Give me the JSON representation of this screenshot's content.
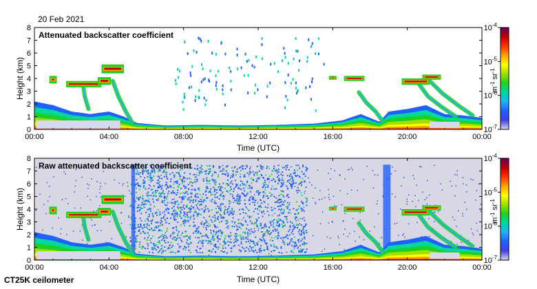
{
  "header": {
    "date": "20 Feb 2021"
  },
  "footer": {
    "instrument": "CT25K ceilometer"
  },
  "chart_data": [
    {
      "type": "heatmap",
      "title": "Attenuated backscatter coefficient",
      "xlabel": "Time (UTC)",
      "ylabel": "Height (km)",
      "x_ticks": [
        "00:00",
        "04:00",
        "08:00",
        "12:00",
        "16:00",
        "20:00",
        "00:00"
      ],
      "y_ticks": [
        "0",
        "1",
        "2",
        "3",
        "4",
        "5",
        "6",
        "7",
        "8"
      ],
      "xlim_hours": [
        0,
        24
      ],
      "ylim_km": [
        0,
        8
      ],
      "colorbar": {
        "scale": "log",
        "ticks": [
          {
            "base": "10",
            "exp": "-7",
            "value": 1e-07
          },
          {
            "base": "10",
            "exp": "-6",
            "value": 1e-06
          },
          {
            "base": "10",
            "exp": "-5",
            "value": 1e-05
          },
          {
            "base": "10",
            "exp": "-4",
            "value": 0.0001
          }
        ],
        "unit": {
          "m": "m",
          "m_exp": "-1",
          "sr": "sr",
          "sr_exp": "-1"
        }
      }
    },
    {
      "type": "heatmap",
      "title": "Raw attenuated backscatter coefficient",
      "xlabel": "Time (UTC)",
      "ylabel": "Height (km)",
      "x_ticks": [
        "00:00",
        "04:00",
        "08:00",
        "12:00",
        "16:00",
        "20:00",
        "00:00"
      ],
      "y_ticks": [
        "0",
        "1",
        "2",
        "3",
        "4",
        "5",
        "6",
        "7",
        "8"
      ],
      "xlim_hours": [
        0,
        24
      ],
      "ylim_km": [
        0,
        8
      ],
      "colorbar": {
        "scale": "log",
        "ticks": [
          {
            "base": "10",
            "exp": "-7",
            "value": 1e-07
          },
          {
            "base": "10",
            "exp": "-6",
            "value": 1e-06
          },
          {
            "base": "10",
            "exp": "-5",
            "value": 1e-05
          },
          {
            "base": "10",
            "exp": "-4",
            "value": 0.0001
          }
        ],
        "unit": {
          "m": "m",
          "m_exp": "-1",
          "sr": "sr",
          "sr_exp": "-1"
        }
      }
    }
  ],
  "colormap": [
    "#d8d8ee",
    "#4040e0",
    "#2060ff",
    "#20b0ff",
    "#00d8a0",
    "#20d020",
    "#a0e000",
    "#ffff00",
    "#ffa000",
    "#ff3000",
    "#c00000",
    "#600060"
  ],
  "features": {
    "boundary_layer": [
      [
        0,
        2.2
      ],
      [
        1,
        1.9
      ],
      [
        2,
        1.4
      ],
      [
        3,
        1.2
      ],
      [
        4,
        1.4
      ],
      [
        4.8,
        1.0
      ],
      [
        5.5,
        0.5
      ],
      [
        7,
        0.3
      ],
      [
        9,
        0.35
      ],
      [
        11,
        0.3
      ],
      [
        13,
        0.35
      ],
      [
        15,
        0.45
      ],
      [
        16.5,
        0.7
      ],
      [
        17.5,
        1.2
      ],
      [
        18.5,
        0.6
      ],
      [
        19,
        1.4
      ],
      [
        20,
        1.6
      ],
      [
        21,
        1.9
      ],
      [
        22,
        1.2
      ],
      [
        23,
        1.1
      ],
      [
        24,
        0.9
      ]
    ],
    "clouds": [
      {
        "t0": 0.8,
        "t1": 1.2,
        "h0": 3.6,
        "h1": 4.2
      },
      {
        "t0": 1.7,
        "t1": 3.6,
        "h0": 3.3,
        "h1": 3.8
      },
      {
        "t0": 3.4,
        "t1": 4.1,
        "h0": 3.5,
        "h1": 4.1
      },
      {
        "t0": 3.6,
        "t1": 4.8,
        "h0": 4.4,
        "h1": 5.1
      },
      {
        "t0": 15.8,
        "t1": 16.2,
        "h0": 3.9,
        "h1": 4.2
      },
      {
        "t0": 16.6,
        "t1": 17.7,
        "h0": 3.8,
        "h1": 4.2
      },
      {
        "t0": 19.7,
        "t1": 21.2,
        "h0": 3.5,
        "h1": 4.0
      },
      {
        "t0": 20.8,
        "t1": 21.8,
        "h0": 3.9,
        "h1": 4.3
      }
    ],
    "fall_streaks": [
      [
        [
          2.6,
          3.6
        ],
        [
          2.7,
          2.6
        ],
        [
          2.9,
          1.6
        ]
      ],
      [
        [
          4.2,
          3.8
        ],
        [
          4.5,
          2.6
        ],
        [
          4.9,
          1.4
        ],
        [
          5.3,
          0.4
        ]
      ],
      [
        [
          17.4,
          2.9
        ],
        [
          17.8,
          2.1
        ],
        [
          18.3,
          1.4
        ],
        [
          18.7,
          0.6
        ]
      ],
      [
        [
          20.6,
          3.6
        ],
        [
          21.1,
          2.6
        ],
        [
          21.8,
          1.8
        ],
        [
          22.6,
          1.0
        ]
      ],
      [
        [
          21.2,
          3.8
        ],
        [
          21.9,
          2.8
        ],
        [
          22.8,
          1.8
        ],
        [
          23.5,
          1.1
        ]
      ]
    ],
    "noise_band_hours": [
      5.1,
      14.6
    ],
    "noise_columns_hours": [
      [
        5.2,
        5.4
      ],
      [
        18.7,
        19.1
      ]
    ]
  }
}
